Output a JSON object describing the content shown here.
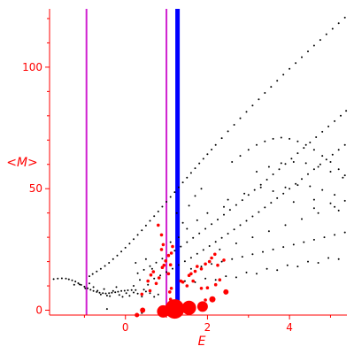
{
  "chart_data": {
    "type": "scatter",
    "xlabel": "E",
    "ylabel": "<M>",
    "xlim": [
      -1.85,
      5.4
    ],
    "ylim": [
      -2,
      124
    ],
    "x_ticks": [
      0,
      2,
      4
    ],
    "y_ticks": [
      0,
      50,
      100
    ],
    "vertical_lines": [
      {
        "x": -0.95,
        "color": "#d020d0"
      },
      {
        "x": 1.0,
        "color": "#d020d0"
      },
      {
        "x": 1.27,
        "color": "#0000ff"
      }
    ],
    "series": [
      {
        "style": "small-points",
        "color": "#000000",
        "points": [
          [
            -1.75,
            12.8
          ],
          [
            -1.65,
            13.0
          ],
          [
            -1.55,
            13.1
          ],
          [
            -1.45,
            13.0
          ],
          [
            -1.38,
            12.7
          ],
          [
            -1.3,
            12.3
          ],
          [
            -1.22,
            11.8
          ],
          [
            -1.15,
            11.1
          ],
          [
            -1.08,
            10.4
          ],
          [
            -1.0,
            9.7
          ],
          [
            -0.92,
            9.0
          ],
          [
            -0.85,
            8.4
          ],
          [
            -0.78,
            7.9
          ],
          [
            -0.7,
            7.5
          ],
          [
            -0.63,
            7.2
          ],
          [
            -0.55,
            7.0
          ],
          [
            -0.48,
            6.9
          ],
          [
            -0.4,
            7.0
          ],
          [
            -0.33,
            7.2
          ],
          [
            -0.25,
            7.4
          ],
          [
            -0.18,
            7.6
          ],
          [
            -0.1,
            7.9
          ],
          [
            -0.02,
            8.0
          ],
          [
            0.06,
            8.2
          ],
          [
            0.15,
            8.3
          ],
          [
            0.25,
            8.3
          ],
          [
            -1.25,
            10.5
          ],
          [
            -1.12,
            10.6
          ],
          [
            -0.98,
            9.0
          ],
          [
            -0.88,
            11.0
          ],
          [
            -0.78,
            9.5
          ],
          [
            -0.68,
            8.0
          ],
          [
            -0.6,
            6.5
          ],
          [
            -0.52,
            8.7
          ],
          [
            -0.45,
            6.0
          ],
          [
            -0.38,
            5.8
          ],
          [
            -0.3,
            7.9
          ],
          [
            -0.22,
            9.5
          ],
          [
            -0.15,
            6.3
          ],
          [
            -0.07,
            5.5
          ],
          [
            0.02,
            7.0
          ],
          [
            0.1,
            5.9
          ],
          [
            0.2,
            7.3
          ],
          [
            0.3,
            6.8
          ],
          [
            0.4,
            5.6
          ],
          [
            0.5,
            7.7
          ],
          [
            0.6,
            7.0
          ],
          [
            0.7,
            5.5
          ],
          [
            0.8,
            6.5
          ],
          [
            -0.45,
            0.5
          ],
          [
            0.4,
            -1.2
          ],
          [
            -0.88,
            14.0
          ],
          [
            -0.8,
            14.9
          ],
          [
            -0.7,
            15.9
          ],
          [
            -0.6,
            17.0
          ],
          [
            -0.5,
            18.2
          ],
          [
            -0.4,
            19.5
          ],
          [
            -0.3,
            21.0
          ],
          [
            -0.2,
            22.5
          ],
          [
            -0.1,
            24.1
          ],
          [
            0.0,
            25.7
          ],
          [
            0.1,
            27.4
          ],
          [
            0.2,
            29.2
          ],
          [
            0.3,
            31.0
          ],
          [
            0.4,
            32.9
          ],
          [
            0.5,
            34.8
          ],
          [
            0.6,
            36.8
          ],
          [
            0.7,
            38.7
          ],
          [
            0.8,
            40.6
          ],
          [
            0.9,
            42.6
          ],
          [
            1.0,
            44.6
          ],
          [
            1.1,
            46.6
          ],
          [
            1.2,
            48.6
          ],
          [
            1.3,
            50.6
          ],
          [
            1.4,
            52.6
          ],
          [
            1.5,
            54.5
          ],
          [
            1.6,
            56.5
          ],
          [
            1.7,
            58.4
          ],
          [
            1.8,
            60.4
          ],
          [
            1.9,
            62.3
          ],
          [
            2.0,
            64.2
          ],
          [
            2.1,
            66.1
          ],
          [
            2.2,
            68.0
          ],
          [
            2.35,
            70.8
          ],
          [
            2.5,
            73.6
          ],
          [
            2.65,
            76.3
          ],
          [
            2.8,
            79.0
          ],
          [
            2.95,
            81.6
          ],
          [
            3.1,
            84.2
          ],
          [
            3.25,
            86.8
          ],
          [
            3.4,
            89.4
          ],
          [
            3.55,
            91.9
          ],
          [
            3.7,
            94.4
          ],
          [
            3.85,
            96.9
          ],
          [
            4.0,
            99.3
          ],
          [
            4.15,
            101.7
          ],
          [
            4.3,
            104.1
          ],
          [
            4.45,
            106.5
          ],
          [
            4.6,
            108.9
          ],
          [
            4.75,
            111.2
          ],
          [
            4.9,
            113.5
          ],
          [
            5.05,
            115.8
          ],
          [
            5.2,
            118.1
          ],
          [
            5.35,
            120.4
          ],
          [
            0.3,
            15.2
          ],
          [
            0.45,
            16.6
          ],
          [
            0.6,
            18.1
          ],
          [
            0.75,
            19.6
          ],
          [
            0.9,
            21.2
          ],
          [
            1.05,
            22.8
          ],
          [
            1.2,
            24.5
          ],
          [
            1.35,
            26.2
          ],
          [
            1.5,
            28.0
          ],
          [
            1.65,
            29.8
          ],
          [
            1.8,
            31.6
          ],
          [
            1.95,
            33.5
          ],
          [
            2.1,
            35.4
          ],
          [
            2.25,
            37.3
          ],
          [
            2.4,
            39.3
          ],
          [
            2.55,
            41.3
          ],
          [
            2.7,
            43.3
          ],
          [
            2.85,
            45.3
          ],
          [
            3.0,
            47.4
          ],
          [
            3.15,
            49.5
          ],
          [
            3.3,
            51.6
          ],
          [
            3.45,
            53.7
          ],
          [
            3.6,
            55.9
          ],
          [
            3.75,
            58.0
          ],
          [
            3.9,
            60.2
          ],
          [
            4.05,
            62.4
          ],
          [
            4.2,
            64.6
          ],
          [
            4.35,
            66.8
          ],
          [
            4.5,
            69.0
          ],
          [
            4.65,
            71.2
          ],
          [
            4.8,
            73.4
          ],
          [
            4.95,
            75.6
          ],
          [
            5.1,
            77.8
          ],
          [
            5.25,
            80.0
          ],
          [
            5.38,
            82.0
          ],
          [
            0.7,
            13.0
          ],
          [
            0.85,
            14.3
          ],
          [
            1.0,
            15.7
          ],
          [
            1.15,
            17.1
          ],
          [
            1.3,
            18.6
          ],
          [
            1.45,
            20.1
          ],
          [
            1.6,
            21.6
          ],
          [
            1.75,
            23.2
          ],
          [
            1.9,
            24.8
          ],
          [
            2.05,
            26.4
          ],
          [
            2.2,
            28.1
          ],
          [
            2.35,
            29.8
          ],
          [
            2.5,
            31.5
          ],
          [
            2.65,
            33.2
          ],
          [
            2.8,
            35.0
          ],
          [
            2.95,
            36.8
          ],
          [
            3.1,
            38.6
          ],
          [
            3.25,
            40.4
          ],
          [
            3.4,
            42.3
          ],
          [
            3.55,
            44.2
          ],
          [
            3.7,
            46.1
          ],
          [
            3.85,
            48.0
          ],
          [
            4.0,
            50.0
          ],
          [
            4.15,
            52.0
          ],
          [
            4.3,
            54.0
          ],
          [
            4.45,
            56.0
          ],
          [
            4.6,
            58.0
          ],
          [
            4.75,
            60.0
          ],
          [
            4.9,
            62.0
          ],
          [
            5.05,
            64.0
          ],
          [
            5.2,
            66.0
          ],
          [
            5.35,
            68.0
          ],
          [
            2.6,
            61.0
          ],
          [
            2.8,
            63.5
          ],
          [
            3.0,
            66.0
          ],
          [
            3.2,
            68.0
          ],
          [
            3.4,
            69.5
          ],
          [
            3.6,
            70.5
          ],
          [
            3.8,
            71.0
          ],
          [
            4.0,
            70.5
          ],
          [
            4.2,
            69.5
          ],
          [
            4.4,
            68.0
          ],
          [
            4.6,
            66.0
          ],
          [
            4.8,
            63.5
          ],
          [
            5.0,
            61.0
          ],
          [
            5.2,
            58.0
          ],
          [
            5.35,
            55.5
          ],
          [
            3.2,
            57.0
          ],
          [
            3.5,
            59.0
          ],
          [
            3.8,
            60.5
          ],
          [
            4.1,
            61.0
          ],
          [
            4.4,
            60.5
          ],
          [
            4.7,
            59.0
          ],
          [
            5.0,
            57.0
          ],
          [
            5.3,
            54.5
          ],
          [
            3.6,
            49.0
          ],
          [
            3.9,
            50.5
          ],
          [
            4.2,
            51.5
          ],
          [
            4.5,
            51.0
          ],
          [
            4.8,
            49.5
          ],
          [
            5.1,
            47.5
          ],
          [
            5.35,
            45.0
          ],
          [
            4.1,
            44.5
          ],
          [
            4.6,
            45.5
          ],
          [
            5.0,
            44.0
          ],
          [
            4.6,
            42.0
          ],
          [
            5.2,
            41.0
          ],
          [
            1.45,
            12.0
          ],
          [
            1.7,
            11.5
          ],
          [
            1.95,
            13.0
          ],
          [
            2.2,
            12.5
          ],
          [
            2.45,
            14.0
          ],
          [
            2.7,
            13.5
          ],
          [
            2.95,
            15.5
          ],
          [
            3.2,
            15.0
          ],
          [
            3.45,
            17.0
          ],
          [
            3.7,
            16.5
          ],
          [
            3.95,
            18.5
          ],
          [
            4.2,
            18.0
          ],
          [
            4.45,
            20.0
          ],
          [
            4.7,
            19.5
          ],
          [
            4.95,
            21.5
          ],
          [
            5.2,
            21.0
          ],
          [
            1.6,
            17.0
          ],
          [
            1.85,
            18.0
          ],
          [
            2.1,
            19.0
          ],
          [
            2.35,
            20.0
          ],
          [
            2.6,
            21.0
          ],
          [
            2.85,
            22.0
          ],
          [
            3.1,
            23.0
          ],
          [
            3.35,
            24.0
          ],
          [
            3.6,
            25.0
          ],
          [
            3.85,
            26.0
          ],
          [
            4.1,
            27.0
          ],
          [
            4.35,
            28.0
          ],
          [
            4.6,
            29.0
          ],
          [
            4.85,
            30.0
          ],
          [
            5.1,
            31.0
          ],
          [
            5.35,
            32.0
          ],
          [
            2.3,
            25.0
          ],
          [
            2.7,
            27.5
          ],
          [
            3.1,
            30.0
          ],
          [
            3.5,
            32.5
          ],
          [
            3.9,
            35.0
          ],
          [
            4.3,
            37.5
          ],
          [
            4.7,
            40.0
          ],
          [
            5.1,
            42.5
          ],
          [
            2.5,
            45.5
          ],
          [
            2.9,
            48.0
          ],
          [
            3.3,
            50.5
          ],
          [
            2.0,
            40.0
          ],
          [
            2.4,
            42.5
          ],
          [
            1.75,
            37.0
          ],
          [
            0.25,
            19.5
          ],
          [
            0.5,
            21.0
          ],
          [
            0.35,
            12.5
          ],
          [
            0.55,
            10.5
          ],
          [
            0.65,
            17.0
          ],
          [
            0.2,
            10.0
          ],
          [
            0.45,
            8.5
          ],
          [
            1.3,
            30.0
          ],
          [
            1.5,
            33.5
          ],
          [
            1.1,
            28.0
          ],
          [
            1.4,
            36.0
          ],
          [
            1.25,
            40.0
          ],
          [
            1.55,
            43.0
          ],
          [
            1.7,
            47.0
          ],
          [
            1.85,
            50.0
          ]
        ]
      },
      {
        "style": "medium-points",
        "color": "#ff0000",
        "points": [
          [
            0.62,
            14.5
          ],
          [
            0.68,
            15.8
          ],
          [
            0.75,
            11.0
          ],
          [
            0.82,
            13.3
          ],
          [
            0.9,
            17.6
          ],
          [
            0.94,
            18.5
          ],
          [
            0.98,
            20.3
          ],
          [
            1.05,
            22.5
          ],
          [
            1.12,
            23.5
          ],
          [
            1.15,
            26.2
          ],
          [
            0.88,
            25.0
          ],
          [
            0.92,
            27.0
          ],
          [
            1.05,
            15.0
          ],
          [
            1.1,
            18.7
          ],
          [
            1.35,
            12.0
          ],
          [
            1.55,
            14.3
          ],
          [
            1.6,
            15.0
          ],
          [
            1.7,
            16.0
          ],
          [
            1.75,
            18.0
          ],
          [
            1.85,
            17.0
          ],
          [
            1.95,
            19.0
          ],
          [
            2.05,
            20.0
          ],
          [
            2.1,
            21.5
          ],
          [
            2.18,
            23.0
          ],
          [
            2.25,
            18.5
          ],
          [
            2.4,
            20.6
          ],
          [
            1.5,
            10.0
          ],
          [
            1.4,
            11.6
          ],
          [
            0.6,
            8.0
          ],
          [
            0.4,
            6.6
          ],
          [
            0.55,
            12.0
          ],
          [
            1.65,
            12.0
          ],
          [
            1.85,
            9.0
          ],
          [
            2.0,
            9.2
          ],
          [
            2.2,
            10.5
          ],
          [
            2.3,
            12.5
          ],
          [
            1.95,
            4.2
          ],
          [
            1.1,
            4.5
          ],
          [
            0.88,
            31.0
          ],
          [
            0.8,
            35.0
          ],
          [
            1.08,
            7.5
          ],
          [
            1.12,
            9.0
          ]
        ]
      },
      {
        "style": "large-points",
        "color": "#ff0000",
        "points": [
          [
            0.42,
            0.0,
            3
          ],
          [
            0.92,
            -0.5,
            7
          ],
          [
            1.2,
            0.5,
            11
          ],
          [
            1.55,
            1.0,
            8
          ],
          [
            1.88,
            1.5,
            6
          ],
          [
            2.12,
            4.5,
            3.5
          ],
          [
            2.45,
            7.5,
            3
          ],
          [
            0.28,
            -2.0,
            2.5
          ]
        ]
      }
    ]
  }
}
